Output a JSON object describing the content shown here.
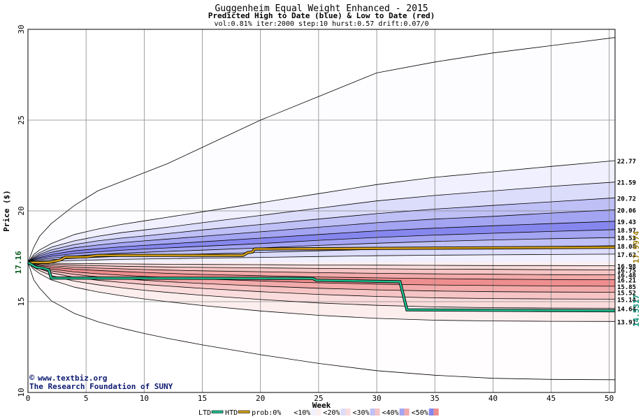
{
  "chart_data": {
    "type": "area",
    "title": "Guggenheim Equal Weight Enhanced - 2015",
    "subtitle": "Predicted High to Date (blue) &  Low to Date (red)",
    "params": "vol:0.81% iter:2000 step:10 hurst:0.57 drift:0.07/0",
    "xlabel": "Week",
    "ylabel": "Price ($)",
    "xlim": [
      0,
      50.5
    ],
    "ylim": [
      10,
      30
    ],
    "x_ticks": [
      0,
      5,
      10,
      15,
      20,
      25,
      30,
      35,
      40,
      45,
      50
    ],
    "y_ticks": [
      10,
      15,
      20,
      25,
      30
    ],
    "grid": true,
    "start_label": "17.16",
    "start_price": 17.16,
    "watermark_1": "www.textbiz.org",
    "watermark_2": "The Research Foundation of SUNY",
    "x": [
      0,
      0.5,
      1,
      2,
      4,
      6,
      8,
      10,
      12,
      15,
      20,
      25,
      30,
      35,
      40,
      45,
      50.5
    ],
    "upper_quantiles": [
      {
        "label": "",
        "band": "0%",
        "values": [
          17.16,
          18.0,
          18.6,
          19.3,
          20.3,
          21.1,
          21.6,
          22.1,
          22.6,
          23.5,
          25.0,
          26.3,
          27.6,
          28.2,
          28.7,
          29.1,
          29.55
        ]
      },
      {
        "label": "22.77",
        "band": "10%",
        "values": [
          17.16,
          17.6,
          17.85,
          18.2,
          18.7,
          19.0,
          19.25,
          19.45,
          19.65,
          19.95,
          20.45,
          20.95,
          21.45,
          21.85,
          22.15,
          22.45,
          22.77
        ]
      },
      {
        "label": "21.59",
        "band": "20%",
        "values": [
          17.16,
          17.5,
          17.7,
          18.0,
          18.35,
          18.6,
          18.8,
          18.95,
          19.1,
          19.35,
          19.75,
          20.15,
          20.55,
          20.85,
          21.1,
          21.35,
          21.59
        ]
      },
      {
        "label": "20.72",
        "band": "30%",
        "values": [
          17.16,
          17.42,
          17.6,
          17.85,
          18.15,
          18.35,
          18.5,
          18.62,
          18.75,
          18.95,
          19.25,
          19.55,
          19.85,
          20.1,
          20.3,
          20.5,
          20.72
        ]
      },
      {
        "label": "20.06",
        "band": "40%",
        "values": [
          17.16,
          17.38,
          17.52,
          17.72,
          17.97,
          18.12,
          18.25,
          18.35,
          18.45,
          18.6,
          18.85,
          19.1,
          19.35,
          19.55,
          19.7,
          19.88,
          20.06
        ]
      },
      {
        "label": "19.43",
        "band": "50%",
        "values": [
          17.16,
          17.33,
          17.44,
          17.6,
          17.8,
          17.92,
          18.02,
          18.1,
          18.18,
          18.3,
          18.5,
          18.7,
          18.9,
          19.05,
          19.18,
          19.3,
          19.43
        ]
      },
      {
        "label": "18.97",
        "band": "40%",
        "values": [
          17.16,
          17.29,
          17.38,
          17.5,
          17.65,
          17.75,
          17.83,
          17.9,
          17.96,
          18.05,
          18.2,
          18.38,
          18.54,
          18.67,
          18.77,
          18.87,
          18.97
        ]
      },
      {
        "label": "18.53",
        "band": "30%",
        "values": [
          17.16,
          17.25,
          17.31,
          17.4,
          17.52,
          17.6,
          17.67,
          17.72,
          17.77,
          17.84,
          17.96,
          18.1,
          18.22,
          18.32,
          18.4,
          18.47,
          18.53
        ]
      },
      {
        "label": "18.08",
        "band": "20%",
        "values": [
          17.16,
          17.21,
          17.25,
          17.31,
          17.39,
          17.45,
          17.5,
          17.54,
          17.58,
          17.63,
          17.71,
          17.8,
          17.88,
          17.94,
          17.99,
          18.04,
          18.08
        ]
      },
      {
        "label": "17.62",
        "band": "10%",
        "values": [
          17.16,
          17.18,
          17.2,
          17.23,
          17.27,
          17.3,
          17.33,
          17.35,
          17.37,
          17.4,
          17.44,
          17.49,
          17.53,
          17.56,
          17.58,
          17.6,
          17.62
        ]
      }
    ],
    "lower_quantiles": [
      {
        "label": "16.98",
        "band": "10%",
        "values": [
          17.16,
          17.15,
          17.14,
          17.12,
          17.1,
          17.09,
          17.08,
          17.07,
          17.06,
          17.05,
          17.04,
          17.02,
          17.01,
          17.0,
          16.99,
          16.99,
          16.98
        ]
      },
      {
        "label": "16.75",
        "band": "20%",
        "values": [
          17.16,
          17.13,
          17.1,
          17.06,
          17.01,
          16.98,
          16.95,
          16.93,
          16.91,
          16.89,
          16.86,
          16.83,
          16.81,
          16.79,
          16.78,
          16.76,
          16.75
        ]
      },
      {
        "label": "16.48",
        "band": "30%",
        "values": [
          17.16,
          17.1,
          17.05,
          16.98,
          16.9,
          16.85,
          16.81,
          16.77,
          16.74,
          16.7,
          16.65,
          16.6,
          16.56,
          16.53,
          16.51,
          16.49,
          16.48
        ]
      },
      {
        "label": "16.21",
        "band": "40%",
        "values": [
          17.16,
          17.07,
          17.0,
          16.9,
          16.79,
          16.72,
          16.66,
          16.61,
          16.56,
          16.5,
          16.43,
          16.36,
          16.31,
          16.27,
          16.24,
          16.22,
          16.21
        ]
      },
      {
        "label": "15.85",
        "band": "50%",
        "values": [
          17.16,
          17.03,
          16.94,
          16.8,
          16.64,
          16.54,
          16.46,
          16.39,
          16.33,
          16.25,
          16.14,
          16.04,
          15.97,
          15.92,
          15.89,
          15.87,
          15.85
        ]
      },
      {
        "label": "15.52",
        "band": "40%",
        "values": [
          17.16,
          16.99,
          16.88,
          16.7,
          16.5,
          16.37,
          16.27,
          16.18,
          16.1,
          16.0,
          15.86,
          15.74,
          15.65,
          15.59,
          15.55,
          15.53,
          15.52
        ]
      },
      {
        "label": "15.14",
        "band": "30%",
        "values": [
          17.16,
          16.94,
          16.81,
          16.59,
          16.34,
          16.18,
          16.06,
          15.95,
          15.86,
          15.73,
          15.55,
          15.4,
          15.29,
          15.21,
          15.17,
          15.15,
          15.14
        ]
      },
      {
        "label": "14.64",
        "band": "20%",
        "values": [
          17.16,
          16.88,
          16.71,
          16.44,
          16.13,
          15.93,
          15.77,
          15.63,
          15.51,
          15.35,
          15.12,
          14.93,
          14.8,
          14.71,
          14.67,
          14.65,
          14.64
        ]
      },
      {
        "label": "13.91",
        "band": "10%",
        "values": [
          17.16,
          16.78,
          16.55,
          16.2,
          15.8,
          15.54,
          15.33,
          15.15,
          15.0,
          14.79,
          14.49,
          14.25,
          14.08,
          13.98,
          13.94,
          13.92,
          13.91
        ]
      },
      {
        "label": "",
        "band": "0%",
        "values": [
          17.16,
          16.2,
          15.75,
          15.05,
          14.35,
          13.9,
          13.55,
          13.25,
          12.98,
          12.62,
          12.08,
          11.6,
          11.2,
          10.95,
          10.78,
          10.72,
          10.7
        ]
      }
    ],
    "series": [
      {
        "name": "HTD",
        "color": "#d4a017",
        "x": [
          0,
          1.8,
          2.8,
          3.2,
          5.0,
          6.0,
          18.5,
          18.9,
          19.3,
          19.5,
          50.5
        ],
        "values": [
          17.16,
          17.16,
          17.3,
          17.45,
          17.47,
          17.55,
          17.55,
          17.7,
          17.74,
          17.9,
          18.0
        ]
      },
      {
        "name": "LTD",
        "color": "#20c090",
        "x": [
          0,
          0.3,
          0.7,
          1.3,
          1.8,
          2.0,
          24.5,
          24.8,
          32.0,
          32.6,
          50.5
        ],
        "values": [
          17.16,
          17.05,
          16.9,
          16.85,
          16.75,
          16.3,
          16.28,
          16.18,
          16.1,
          14.55,
          14.5
        ]
      }
    ],
    "right_labels": [
      {
        "text": "17.9974",
        "color": "#a08010"
      },
      {
        "text": "14.5317",
        "color": "#10907a"
      }
    ],
    "band_colors": {
      "0%": "#fdfdff",
      "10%": "#f0f0fe",
      "20%": "#dcdcfb",
      "30%": "#bfc0f6",
      "40%": "#a3a4f2",
      "50%": "#8687ee",
      "r0%": "#fffdfd",
      "r10%": "#fdeeee",
      "r20%": "#fbdcdc",
      "r30%": "#f6c4c4",
      "r40%": "#f2aaaa",
      "r50%": "#ee8e8e"
    },
    "legend": [
      {
        "label": "LTD",
        "kind": "line",
        "color": "#20c090"
      },
      {
        "label": "HTD",
        "kind": "line",
        "color": "#d4a017"
      },
      {
        "label": "prob:0%",
        "kind": "swatch",
        "blue": "#fdfdff",
        "red": "#fffdfd"
      },
      {
        "label": "<10%",
        "kind": "swatch",
        "blue": "#f0f0fe",
        "red": "#fdeeee"
      },
      {
        "label": "<20%",
        "kind": "swatch",
        "blue": "#dcdcfb",
        "red": "#fbdcdc"
      },
      {
        "label": "<30%",
        "kind": "swatch",
        "blue": "#bfc0f6",
        "red": "#f6c4c4"
      },
      {
        "label": "<40%",
        "kind": "swatch",
        "blue": "#a3a4f2",
        "red": "#f2aaaa"
      },
      {
        "label": "<50%",
        "kind": "swatch",
        "blue": "#8687ee",
        "red": "#ee8e8e"
      }
    ]
  }
}
